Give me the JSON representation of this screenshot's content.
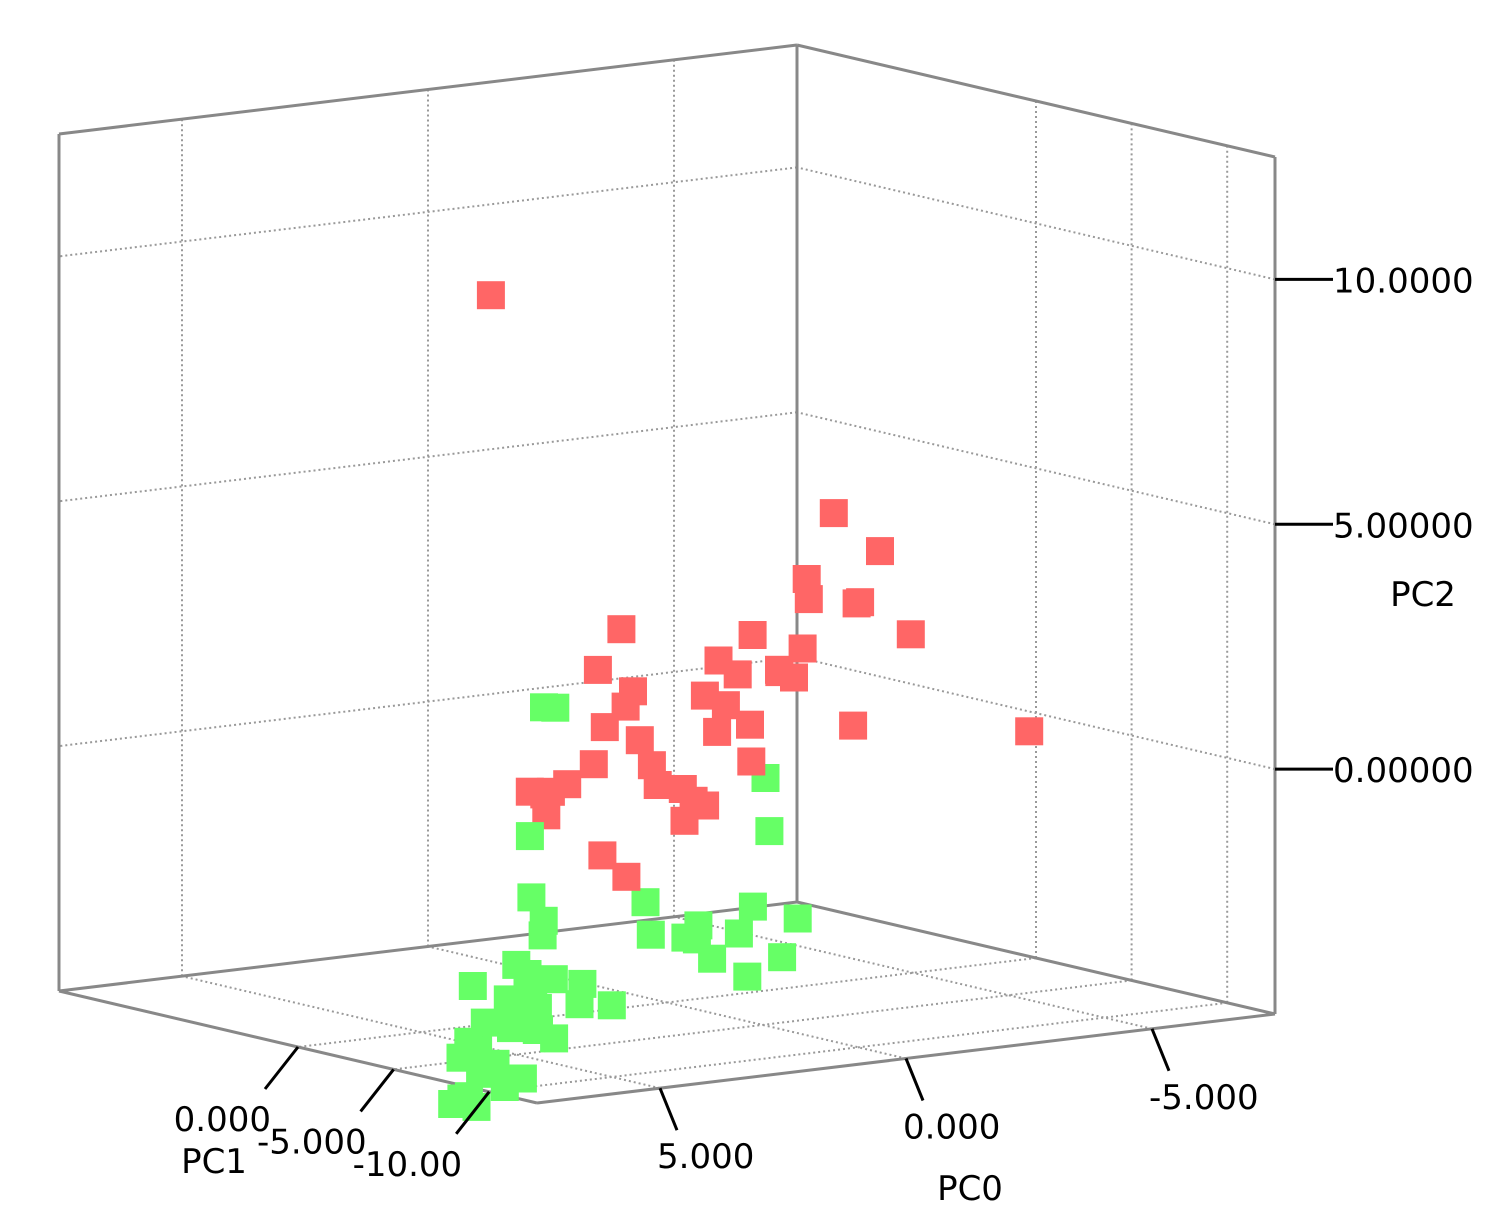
{
  "chart_data": {
    "type": "scatter",
    "projection": "3d",
    "axes": {
      "x": {
        "label": "PC0",
        "range": [
          -7.5,
          7.5
        ],
        "ticks": [
          "5.000",
          "0.000",
          "-5.000"
        ],
        "tick_values": [
          5,
          0,
          -5
        ]
      },
      "y": {
        "label": "PC1",
        "range": [
          -12.5,
          12.5
        ],
        "ticks": [
          "-10.00",
          "-5.000",
          "0.000"
        ],
        "tick_values": [
          -10,
          -5,
          0
        ]
      },
      "z": {
        "label": "PC2",
        "range": [
          -5,
          12.5
        ],
        "ticks": [
          "10.0000",
          "5.00000",
          "0.00000"
        ],
        "tick_values": [
          10,
          5,
          0
        ]
      }
    },
    "grid": true,
    "series": [
      {
        "color": "#ff6666",
        "points": [
          [
            0.84,
            7.05,
            8.9
          ],
          [
            -6.37,
            -2.55,
            0.0
          ],
          [
            1.89,
            -3.44,
            0.9
          ],
          [
            2.68,
            -4.73,
            1.8
          ],
          [
            4.63,
            -4.74,
            0.3
          ],
          [
            5.2,
            -7.07,
            0.1
          ],
          [
            4.22,
            -7.48,
            -0.8
          ],
          [
            3.44,
            -6.73,
            -1.4
          ],
          [
            1.7,
            -5.29,
            -0.6
          ],
          [
            2.04,
            -4.46,
            0.5
          ],
          [
            0.99,
            -3.94,
            -0.4
          ],
          [
            -0.07,
            -4.23,
            0.3
          ],
          [
            0.66,
            -4.32,
            1.0
          ],
          [
            1.64,
            -0.39,
            0.1
          ],
          [
            1.05,
            0.55,
            0.7
          ],
          [
            -1.72,
            -0.05,
            2.3
          ],
          [
            -0.54,
            3.17,
            1.0
          ],
          [
            2.67,
            -0.8,
            -0.3
          ],
          [
            2.63,
            -0.35,
            -0.4
          ],
          [
            2.02,
            0.02,
            -0.3
          ],
          [
            0.18,
            -1.29,
            -0.5
          ],
          [
            -1.77,
            1.86,
            1.6
          ],
          [
            -0.27,
            1.18,
            -0.7
          ],
          [
            -2.44,
            1.94,
            0.2
          ],
          [
            -2.63,
            3.07,
            1.1
          ],
          [
            -2.38,
            4.14,
            0.6
          ],
          [
            -0.17,
            4.05,
            1.4
          ],
          [
            -1.98,
            3.1,
            -1.5
          ],
          [
            -1.55,
            0.91,
            0.8
          ],
          [
            -2.48,
            0.51,
            1.4
          ],
          [
            0.27,
            1.69,
            2.5
          ],
          [
            -4.25,
            3.63,
            2.8
          ],
          [
            -4.59,
            0.67,
            3.6
          ],
          [
            -3.69,
            2.08,
            2.6
          ],
          [
            -5.21,
            3.49,
            2.2
          ],
          [
            -4.76,
            2.15,
            2.4
          ],
          [
            -5.57,
            1.58,
            1.7
          ],
          [
            -3.73,
            3.74,
            1.0
          ],
          [
            -3.02,
            0.68,
            1.8
          ],
          [
            -4.05,
            3.78,
            0.8
          ],
          [
            -6.43,
            7.82,
            3.5
          ],
          [
            -4.33,
            1.41,
            0.0
          ]
        ]
      },
      {
        "color": "#66ff66",
        "points": [
          [
            6.62,
            -10.6,
            2.8
          ],
          [
            6.21,
            -10.14,
            2.7
          ],
          [
            6.33,
            -9.12,
            0.0
          ],
          [
            6.18,
            -8.81,
            -1.3
          ],
          [
            5.95,
            -8.86,
            -1.8
          ],
          [
            5.96,
            -8.83,
            -2.1
          ],
          [
            6.41,
            -9.2,
            -2.8
          ],
          [
            5.76,
            -6.94,
            -2.9
          ],
          [
            6.15,
            -5.67,
            -3.4
          ],
          [
            5.84,
            -5.5,
            -4.2
          ],
          [
            6.32,
            -5.87,
            -4.5
          ],
          [
            5.81,
            -5.07,
            -4.8
          ],
          [
            5.93,
            -4.46,
            -5.0
          ],
          [
            5.47,
            -4.3,
            -5.4
          ],
          [
            5.89,
            -3.92,
            -6.0
          ],
          [
            5.2,
            -3.77,
            -5.4
          ],
          [
            4.75,
            -3.22,
            -5.4
          ],
          [
            4.49,
            -3.07,
            -5.9
          ],
          [
            5.22,
            -3.07,
            -6.0
          ],
          [
            4.89,
            -2.62,
            -6.3
          ],
          [
            4.04,
            -2.86,
            -5.8
          ],
          [
            4.63,
            -2.25,
            -5.6
          ],
          [
            5.17,
            -2.55,
            -6.1
          ],
          [
            4.13,
            -1.66,
            -5.6
          ],
          [
            3.84,
            -1.72,
            -4.9
          ],
          [
            3.58,
            -1.93,
            -4.6
          ],
          [
            2.97,
            -0.95,
            -5.1
          ],
          [
            2.8,
            1.12,
            -4.7
          ],
          [
            2.32,
            0.78,
            -4.9
          ],
          [
            2.82,
            -0.26,
            -4.3
          ],
          [
            2.43,
            -0.33,
            -4.2
          ],
          [
            3.27,
            -0.25,
            -4.8
          ],
          [
            2.76,
            -0.29,
            -5.2
          ],
          [
            2.45,
            -0.4,
            -5.4
          ],
          [
            1.27,
            1.31,
            -5.0
          ],
          [
            1.19,
            1.36,
            -4.6
          ],
          [
            1.18,
            -0.15,
            -4.9
          ],
          [
            -1.21,
            1.55,
            -4.0
          ],
          [
            -1.16,
            2.02,
            -4.0
          ],
          [
            -1.47,
            2.14,
            -3.8
          ],
          [
            -0.86,
            3.06,
            -4.0
          ],
          [
            -1.25,
            4.34,
            -3.5
          ],
          [
            -2.56,
            2.39,
            -5.0
          ],
          [
            -1.99,
            2.76,
            -4.6
          ],
          [
            -3.56,
            4.67,
            -3.9
          ],
          [
            -4.46,
            6.12,
            -2.6
          ],
          [
            -4.64,
            6.79,
            -1.6
          ],
          [
            -3.58,
            3.19,
            -4.8
          ],
          [
            -4.04,
            3.56,
            -4.1
          ],
          [
            -2.67,
            3.11,
            -4.2
          ]
        ]
      }
    ]
  }
}
